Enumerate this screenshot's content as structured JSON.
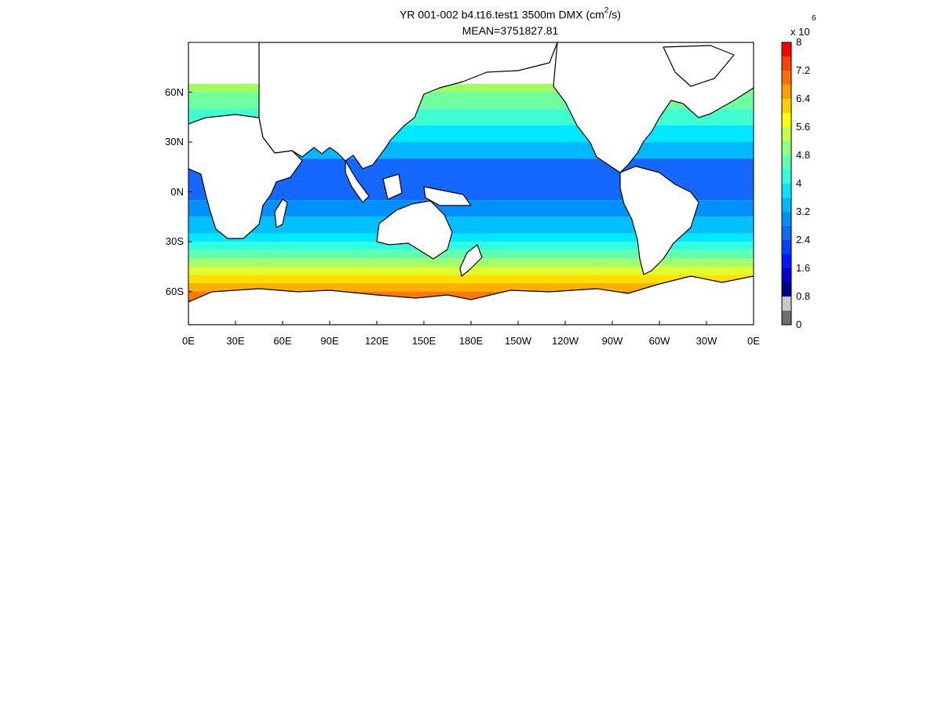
{
  "figure": {
    "title_prefix": "YR 001-002 b4.t16.test1 3500m DMX (cm",
    "title_units_power": "2",
    "title_suffix": "/s)",
    "subtitle": "MEAN=3751827.81"
  },
  "map": {
    "projection": "cylindrical-equidistant",
    "lon_range": [
      0,
      360
    ],
    "lat_range": [
      -80,
      90
    ],
    "lat_ticks": [
      {
        "value": 60,
        "label": "60N"
      },
      {
        "value": 30,
        "label": "30N"
      },
      {
        "value": 0,
        "label": "0N"
      },
      {
        "value": -30,
        "label": "30S"
      },
      {
        "value": -60,
        "label": "60S"
      }
    ],
    "lon_ticks": [
      {
        "value": 0,
        "label": "0E"
      },
      {
        "value": 30,
        "label": "30E"
      },
      {
        "value": 60,
        "label": "60E"
      },
      {
        "value": 90,
        "label": "90E"
      },
      {
        "value": 120,
        "label": "120E"
      },
      {
        "value": 150,
        "label": "150E"
      },
      {
        "value": 180,
        "label": "180E"
      },
      {
        "value": 210,
        "label": "150W"
      },
      {
        "value": 240,
        "label": "120W"
      },
      {
        "value": 270,
        "label": "90W"
      },
      {
        "value": 300,
        "label": "60W"
      },
      {
        "value": 330,
        "label": "30W"
      },
      {
        "value": 360,
        "label": "0E"
      }
    ],
    "field_note_pattern": "zonal bands",
    "band_colors_by_lat": [
      {
        "lat": [
          60,
          65
        ],
        "color": "#a0ff60"
      },
      {
        "lat": [
          50,
          60
        ],
        "color": "#70ffa0"
      },
      {
        "lat": [
          40,
          50
        ],
        "color": "#40ffd0"
      },
      {
        "lat": [
          30,
          40
        ],
        "color": "#00e8ff"
      },
      {
        "lat": [
          20,
          30
        ],
        "color": "#00b8ff"
      },
      {
        "lat": [
          -5,
          20
        ],
        "color": "#1468ff"
      },
      {
        "lat": [
          -15,
          -5
        ],
        "color": "#0090ff"
      },
      {
        "lat": [
          -25,
          -15
        ],
        "color": "#00c0ff"
      },
      {
        "lat": [
          -30,
          -25
        ],
        "color": "#00e8ff"
      },
      {
        "lat": [
          -35,
          -30
        ],
        "color": "#30ffe0"
      },
      {
        "lat": [
          -40,
          -35
        ],
        "color": "#60ffb0"
      },
      {
        "lat": [
          -45,
          -40
        ],
        "color": "#a0ff70"
      },
      {
        "lat": [
          -50,
          -45
        ],
        "color": "#e0ff30"
      },
      {
        "lat": [
          -55,
          -50
        ],
        "color": "#ffe000"
      },
      {
        "lat": [
          -60,
          -55
        ],
        "color": "#ffb000"
      },
      {
        "lat": [
          -65,
          -60
        ],
        "color": "#ff7800"
      },
      {
        "lat": [
          -72,
          -65
        ],
        "color": "#ff2000"
      }
    ]
  },
  "colorbar": {
    "exponent_base": "x 10",
    "exponent_power": "6",
    "ticks": [
      {
        "value": 8,
        "label": "8"
      },
      {
        "value": 7.2,
        "label": "7.2"
      },
      {
        "value": 6.4,
        "label": "6.4"
      },
      {
        "value": 5.6,
        "label": "5.6"
      },
      {
        "value": 4.8,
        "label": "4.8"
      },
      {
        "value": 4,
        "label": "4"
      },
      {
        "value": 3.2,
        "label": "3.2"
      },
      {
        "value": 2.4,
        "label": "2.4"
      },
      {
        "value": 1.6,
        "label": "1.6"
      },
      {
        "value": 0.8,
        "label": "0.8"
      },
      {
        "value": 0,
        "label": "0"
      }
    ],
    "bins": [
      {
        "from": 0,
        "to": 0.4,
        "color": "#6e6e6e"
      },
      {
        "from": 0.4,
        "to": 0.8,
        "color": "#c8c8c8"
      },
      {
        "from": 0.8,
        "to": 1.2,
        "color": "#00008c"
      },
      {
        "from": 1.2,
        "to": 1.6,
        "color": "#0000c8"
      },
      {
        "from": 1.6,
        "to": 2.0,
        "color": "#0018ff"
      },
      {
        "from": 2.0,
        "to": 2.4,
        "color": "#0040ff"
      },
      {
        "from": 2.4,
        "to": 2.8,
        "color": "#1468ff"
      },
      {
        "from": 2.8,
        "to": 3.2,
        "color": "#0090ff"
      },
      {
        "from": 3.2,
        "to": 3.6,
        "color": "#00b8ff"
      },
      {
        "from": 3.6,
        "to": 4.0,
        "color": "#00e8ff"
      },
      {
        "from": 4.0,
        "to": 4.4,
        "color": "#30ffe0"
      },
      {
        "from": 4.4,
        "to": 4.8,
        "color": "#60ffb0"
      },
      {
        "from": 4.8,
        "to": 5.2,
        "color": "#90ff80"
      },
      {
        "from": 5.2,
        "to": 5.6,
        "color": "#c0ff50"
      },
      {
        "from": 5.6,
        "to": 6.0,
        "color": "#ffff00"
      },
      {
        "from": 6.0,
        "to": 6.4,
        "color": "#ffd000"
      },
      {
        "from": 6.4,
        "to": 6.8,
        "color": "#ffa000"
      },
      {
        "from": 6.8,
        "to": 7.2,
        "color": "#ff7000"
      },
      {
        "from": 7.2,
        "to": 7.6,
        "color": "#ff4000"
      },
      {
        "from": 7.6,
        "to": 8.0,
        "color": "#ff0000"
      }
    ]
  }
}
